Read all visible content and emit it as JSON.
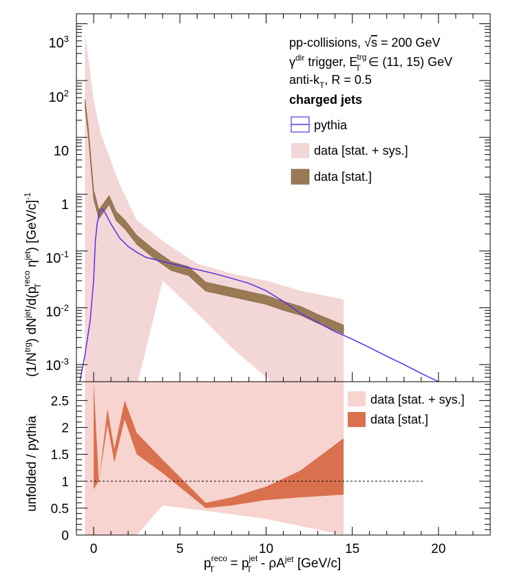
{
  "colors": {
    "pythia": "#5a2de6",
    "band_sys_top": "#f3d6d6",
    "band_stat_top": "#9a7a55",
    "band_sys_bottom": "#f7d4d0",
    "band_stat_bottom": "#d9714f"
  },
  "labels": {
    "line1_pre": "pp-collisions, ",
    "line1_sqrt": "√",
    "line1_s": "s",
    "line1_post": " = 200 GeV",
    "line2_gamma": "γ",
    "line2_dir": "dir",
    "line2_trigger": " trigger, E",
    "line2_trg": "trg",
    "line2_T": "T",
    "line2_post": " ∈ (11, 15) GeV",
    "line3_pre": "anti-k",
    "line3_T": "T",
    "line3_post": ", R = 0.5",
    "line4": "charged jets",
    "ylabel_top": "(1/N^trg) dN^jet/d(p_T^reco η^jet) [GeV/c]^-1",
    "ylabel_bottom": "unfolded / pythia",
    "xlabel": "p_T^reco = p_T^jet - ρA^jet [GeV/c]"
  },
  "chart_data": [
    {
      "type": "line",
      "panel": "top",
      "xlim": [
        -1,
        23
      ],
      "ylim": [
        0.0005,
        1500
      ],
      "log_y": true,
      "x_ticks": [
        0,
        5,
        10,
        15,
        20
      ],
      "y_tick_labels": [
        "10^-3",
        "10^-2",
        "10^-1",
        "1",
        "10",
        "10^2",
        "10^3"
      ],
      "legend": [
        "pythia",
        "data [stat. + sys.]",
        "data [stat.]"
      ],
      "series": [
        {
          "name": "pythia",
          "points": [
            [
              -0.8,
              0.0005
            ],
            [
              -0.5,
              0.0015
            ],
            [
              -0.2,
              0.006
            ],
            [
              0,
              0.03
            ],
            [
              0.1,
              0.15
            ],
            [
              0.2,
              0.3
            ],
            [
              0.35,
              0.5
            ],
            [
              0.5,
              0.55
            ],
            [
              0.7,
              0.45
            ],
            [
              1.0,
              0.3
            ],
            [
              1.5,
              0.17
            ],
            [
              2.0,
              0.12
            ],
            [
              2.5,
              0.095
            ],
            [
              3.0,
              0.078
            ],
            [
              4.0,
              0.065
            ],
            [
              5.0,
              0.055
            ],
            [
              6.0,
              0.047
            ],
            [
              7.0,
              0.04
            ],
            [
              8.0,
              0.033
            ],
            [
              9.0,
              0.027
            ],
            [
              10.0,
              0.02
            ],
            [
              11.0,
              0.013
            ],
            [
              12.0,
              0.008
            ],
            [
              13.0,
              0.0055
            ],
            [
              14.0,
              0.0038
            ],
            [
              15.0,
              0.0028
            ],
            [
              16.0,
              0.002
            ],
            [
              17.0,
              0.0014
            ],
            [
              18.0,
              0.001
            ],
            [
              19.0,
              0.0007
            ],
            [
              20.0,
              0.0005
            ]
          ]
        },
        {
          "name": "data [stat.]",
          "points": [
            [
              -0.5,
              40
            ],
            [
              -0.3,
              12
            ],
            [
              0,
              1.0
            ],
            [
              0.3,
              0.45
            ],
            [
              0.6,
              0.6
            ],
            [
              0.9,
              0.8
            ],
            [
              1.3,
              0.42
            ],
            [
              1.8,
              0.3
            ],
            [
              2.5,
              0.16
            ],
            [
              3.5,
              0.09
            ],
            [
              4.5,
              0.055
            ],
            [
              5.5,
              0.045
            ],
            [
              6.5,
              0.024
            ],
            [
              8.0,
              0.019
            ],
            [
              10.0,
              0.014
            ],
            [
              11.0,
              0.011
            ],
            [
              12.0,
              0.009
            ],
            [
              13.0,
              0.0065
            ],
            [
              14.5,
              0.0042
            ]
          ],
          "rel_band": 0.18
        },
        {
          "name": "data [stat. + sys.]",
          "points": [
            [
              -0.5,
              40
            ],
            [
              -0.3,
              12
            ],
            [
              0,
              1.0
            ],
            [
              0.3,
              0.45
            ],
            [
              0.6,
              0.6
            ],
            [
              0.9,
              0.8
            ],
            [
              1.3,
              0.42
            ],
            [
              1.8,
              0.3
            ],
            [
              2.5,
              0.16
            ],
            [
              3.5,
              0.09
            ],
            [
              4.5,
              0.055
            ],
            [
              5.5,
              0.045
            ],
            [
              6.5,
              0.024
            ],
            [
              8.0,
              0.019
            ],
            [
              10.0,
              0.014
            ],
            [
              11.0,
              0.011
            ],
            [
              12.0,
              0.009
            ],
            [
              13.0,
              0.0065
            ],
            [
              14.5,
              0.0042
            ]
          ],
          "upper": [
            [
              -0.5,
              700
            ],
            [
              0,
              45
            ],
            [
              0.4,
              12
            ],
            [
              1.5,
              1.5
            ],
            [
              2.5,
              0.35
            ],
            [
              4,
              0.15
            ],
            [
              6,
              0.06
            ],
            [
              8,
              0.04
            ],
            [
              10,
              0.03
            ],
            [
              12,
              0.02
            ],
            [
              14.5,
              0.014
            ]
          ],
          "lower": [
            [
              -0.5,
              0.0004
            ],
            [
              0,
              0.0004
            ],
            [
              2.5,
              0.0004
            ],
            [
              4,
              0.03
            ],
            [
              6,
              0.008
            ],
            [
              8,
              0.002
            ],
            [
              10,
              0.0006
            ],
            [
              10.5,
              0.0004
            ],
            [
              14.5,
              0.0004
            ]
          ]
        }
      ]
    },
    {
      "type": "line",
      "panel": "bottom",
      "xlim": [
        -1,
        23
      ],
      "ylim": [
        0,
        2.85
      ],
      "x_ticks": [
        0,
        5,
        10,
        15,
        20
      ],
      "y_ticks": [
        0,
        0.5,
        1,
        1.5,
        2,
        2.5
      ],
      "reference_line": 1,
      "legend": [
        "data [stat. + sys.]",
        "data [stat.]"
      ],
      "series": [
        {
          "name": "data [stat.]",
          "upper": [
            [
              0,
              2.85
            ],
            [
              0.3,
              1.0
            ],
            [
              0.8,
              2.35
            ],
            [
              1.2,
              1.6
            ],
            [
              1.8,
              2.5
            ],
            [
              2.5,
              1.9
            ],
            [
              4.0,
              1.4
            ],
            [
              6.5,
              0.6
            ],
            [
              8.0,
              0.7
            ],
            [
              10.0,
              0.9
            ],
            [
              12.0,
              1.2
            ],
            [
              14.5,
              1.8
            ]
          ],
          "lower": [
            [
              0,
              0.85
            ],
            [
              0.3,
              1.0
            ],
            [
              0.8,
              2.05
            ],
            [
              1.2,
              1.35
            ],
            [
              1.8,
              2.15
            ],
            [
              2.5,
              1.5
            ],
            [
              4.0,
              1.15
            ],
            [
              6.5,
              0.5
            ],
            [
              8.0,
              0.55
            ],
            [
              10.0,
              0.65
            ],
            [
              12.0,
              0.7
            ],
            [
              14.5,
              0.75
            ]
          ]
        },
        {
          "name": "data [stat. + sys.]",
          "upper": [
            [
              -0.5,
              2.85
            ],
            [
              14.5,
              2.85
            ]
          ],
          "lower": [
            [
              -0.5,
              0
            ],
            [
              2.5,
              0
            ],
            [
              4.0,
              0.55
            ],
            [
              6.5,
              0.45
            ],
            [
              10.0,
              0.3
            ],
            [
              14.5,
              0
            ]
          ]
        }
      ]
    }
  ]
}
